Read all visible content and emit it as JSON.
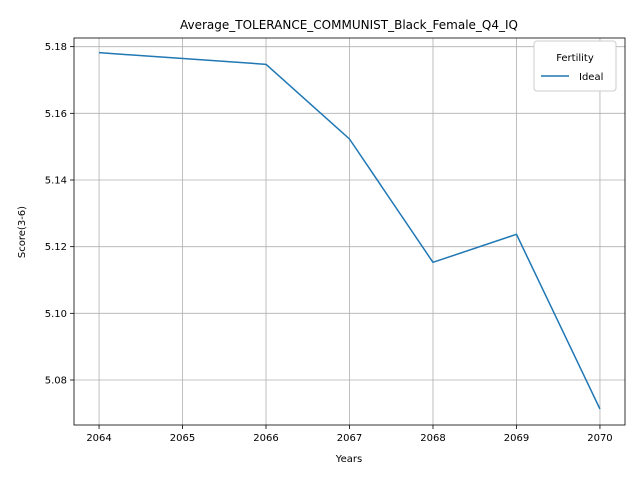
{
  "chart_data": {
    "type": "line",
    "title": "Average_TOLERANCE_COMMUNIST_Black_Female_Q4_IQ",
    "xlabel": "Years",
    "ylabel": "Score(3-6)",
    "x": [
      2064,
      2065,
      2066,
      2067,
      2068,
      2069,
      2070
    ],
    "xticks": [
      "2064",
      "2065",
      "2066",
      "2067",
      "2068",
      "2069",
      "2070"
    ],
    "yticks": [
      "5.08",
      "5.10",
      "5.12",
      "5.14",
      "5.16",
      "5.18"
    ],
    "xlim": [
      2063.7,
      2070.3
    ],
    "ylim": [
      5.0665,
      5.1826
    ],
    "grid": true,
    "legend": {
      "title": "Fertility",
      "placement": "upper-right"
    },
    "series": [
      {
        "name": "Ideal",
        "color": "#1f77b4",
        "x": [
          2064,
          2066,
          2067,
          2068,
          2069,
          2070
        ],
        "values": [
          5.1782,
          5.1747,
          5.1523,
          5.1153,
          5.1237,
          5.0713
        ]
      }
    ]
  }
}
